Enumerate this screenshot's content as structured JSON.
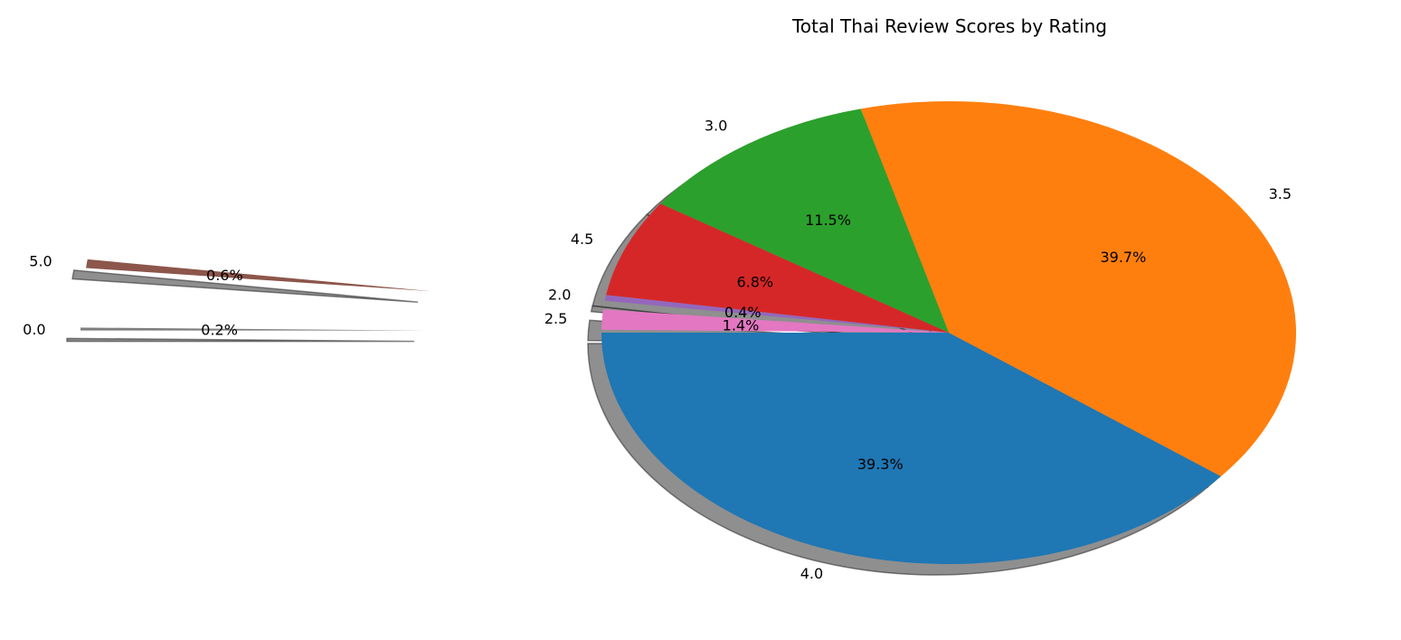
{
  "chart_data": {
    "type": "pie",
    "title": "Total Thai Review Scores by Rating",
    "shadow": true,
    "slices": [
      {
        "label": "4.0",
        "percent": 39.3,
        "percent_label": "39.3%",
        "color": "#1f77b4",
        "exploded": false
      },
      {
        "label": "3.5",
        "percent": 39.7,
        "percent_label": "39.7%",
        "color": "#ff7f0e",
        "exploded": false
      },
      {
        "label": "3.0",
        "percent": 11.5,
        "percent_label": "11.5%",
        "color": "#2ca02c",
        "exploded": false
      },
      {
        "label": "4.5",
        "percent": 6.8,
        "percent_label": "6.8%",
        "color": "#d62728",
        "exploded": false
      },
      {
        "label": "2.0",
        "percent": 0.4,
        "percent_label": "0.4%",
        "color": "#9467bd",
        "exploded": false
      },
      {
        "label": "5.0",
        "percent": 0.6,
        "percent_label": "0.6%",
        "color": "#8c564b",
        "exploded": true
      },
      {
        "label": "2.5",
        "percent": 1.4,
        "percent_label": "1.4%",
        "color": "#e377c2",
        "exploded": false
      },
      {
        "label": "0.0",
        "percent": 0.2,
        "percent_label": "0.2%",
        "color": "#7f7f7f",
        "exploded": true
      }
    ]
  }
}
